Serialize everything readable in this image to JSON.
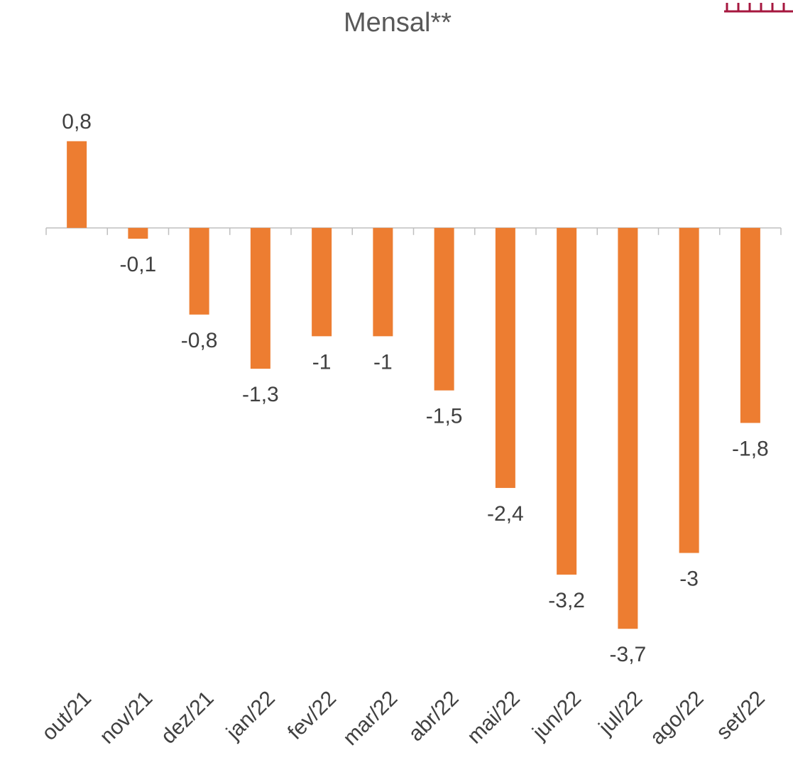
{
  "chart_data": {
    "type": "bar",
    "title": "Mensal**",
    "categories": [
      "out/21",
      "nov/21",
      "dez/21",
      "jan/22",
      "fev/22",
      "mar/22",
      "abr/22",
      "mai/22",
      "jun/22",
      "jul/22",
      "ago/22",
      "set/22"
    ],
    "values": [
      0.8,
      -0.1,
      -0.8,
      -1.3,
      -1,
      -1,
      -1.5,
      -2.4,
      -3.2,
      -3.7,
      -3,
      -1.8
    ],
    "value_labels": [
      "0,8",
      "-0,1",
      "-0,8",
      "-1,3",
      "-1",
      "-1",
      "-1,5",
      "-2,4",
      "-3,2",
      "-3,7",
      "-3",
      "-1,8"
    ],
    "color": "#ed7d31",
    "ylim": [
      -4,
      1.5
    ]
  }
}
